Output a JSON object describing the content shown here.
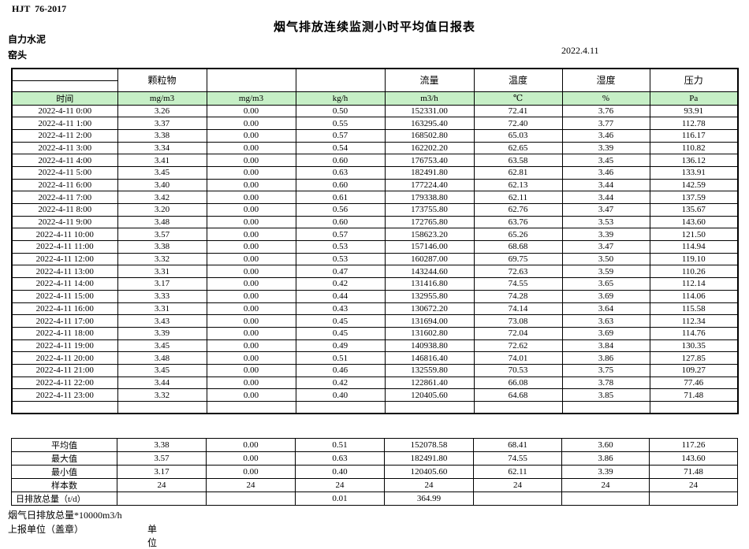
{
  "page": {
    "standard_code": "HJT  76-2017",
    "title": "烟气排放连续监测小时平均值日报表",
    "company": "自力水泥",
    "monitor_point": "窑头",
    "report_date": "2022.4.11"
  },
  "table": {
    "group_headers": [
      "",
      "颗粒物",
      "",
      "",
      "流量",
      "温度",
      "湿度",
      "压力"
    ],
    "unit_headers": [
      "时间",
      "mg/m3",
      "mg/m3",
      "kg/h",
      "m3/h",
      "℃",
      "%",
      "Pa"
    ],
    "rows": [
      [
        "2022-4-11 0:00",
        "3.26",
        "0.00",
        "0.50",
        "152331.00",
        "72.41",
        "3.76",
        "93.91"
      ],
      [
        "2022-4-11 1:00",
        "3.37",
        "0.00",
        "0.55",
        "163295.40",
        "72.40",
        "3.77",
        "112.78"
      ],
      [
        "2022-4-11 2:00",
        "3.38",
        "0.00",
        "0.57",
        "168502.80",
        "65.03",
        "3.46",
        "116.17"
      ],
      [
        "2022-4-11 3:00",
        "3.34",
        "0.00",
        "0.54",
        "162202.20",
        "62.65",
        "3.39",
        "110.82"
      ],
      [
        "2022-4-11 4:00",
        "3.41",
        "0.00",
        "0.60",
        "176753.40",
        "63.58",
        "3.45",
        "136.12"
      ],
      [
        "2022-4-11 5:00",
        "3.45",
        "0.00",
        "0.63",
        "182491.80",
        "62.81",
        "3.46",
        "133.91"
      ],
      [
        "2022-4-11 6:00",
        "3.40",
        "0.00",
        "0.60",
        "177224.40",
        "62.13",
        "3.44",
        "142.59"
      ],
      [
        "2022-4-11 7:00",
        "3.42",
        "0.00",
        "0.61",
        "179338.80",
        "62.11",
        "3.44",
        "137.59"
      ],
      [
        "2022-4-11 8:00",
        "3.20",
        "0.00",
        "0.56",
        "173755.80",
        "62.76",
        "3.47",
        "135.67"
      ],
      [
        "2022-4-11 9:00",
        "3.48",
        "0.00",
        "0.60",
        "172765.80",
        "63.76",
        "3.53",
        "143.60"
      ],
      [
        "2022-4-11 10:00",
        "3.57",
        "0.00",
        "0.57",
        "158623.20",
        "65.26",
        "3.39",
        "121.50"
      ],
      [
        "2022-4-11 11:00",
        "3.38",
        "0.00",
        "0.53",
        "157146.00",
        "68.68",
        "3.47",
        "114.94"
      ],
      [
        "2022-4-11 12:00",
        "3.32",
        "0.00",
        "0.53",
        "160287.00",
        "69.75",
        "3.50",
        "119.10"
      ],
      [
        "2022-4-11 13:00",
        "3.31",
        "0.00",
        "0.47",
        "143244.60",
        "72.63",
        "3.59",
        "110.26"
      ],
      [
        "2022-4-11 14:00",
        "3.17",
        "0.00",
        "0.42",
        "131416.80",
        "74.55",
        "3.65",
        "112.14"
      ],
      [
        "2022-4-11 15:00",
        "3.33",
        "0.00",
        "0.44",
        "132955.80",
        "74.28",
        "3.69",
        "114.06"
      ],
      [
        "2022-4-11 16:00",
        "3.31",
        "0.00",
        "0.43",
        "130672.20",
        "74.14",
        "3.64",
        "115.58"
      ],
      [
        "2022-4-11 17:00",
        "3.43",
        "0.00",
        "0.45",
        "131694.00",
        "73.08",
        "3.63",
        "112.34"
      ],
      [
        "2022-4-11 18:00",
        "3.39",
        "0.00",
        "0.45",
        "131602.80",
        "72.04",
        "3.69",
        "114.76"
      ],
      [
        "2022-4-11 19:00",
        "3.45",
        "0.00",
        "0.49",
        "140938.80",
        "72.62",
        "3.84",
        "130.35"
      ],
      [
        "2022-4-11 20:00",
        "3.48",
        "0.00",
        "0.51",
        "146816.40",
        "74.01",
        "3.86",
        "127.85"
      ],
      [
        "2022-4-11 21:00",
        "3.45",
        "0.00",
        "0.46",
        "132559.80",
        "70.53",
        "3.75",
        "109.27"
      ],
      [
        "2022-4-11 22:00",
        "3.44",
        "0.00",
        "0.42",
        "122861.40",
        "66.08",
        "3.78",
        "77.46"
      ],
      [
        "2022-4-11 23:00",
        "3.32",
        "0.00",
        "0.40",
        "120405.60",
        "64.68",
        "3.85",
        "71.48"
      ]
    ],
    "summary_rows": [
      [
        "平均值",
        "3.38",
        "0.00",
        "0.51",
        "152078.58",
        "68.41",
        "3.60",
        "117.26"
      ],
      [
        "最大值",
        "3.57",
        "0.00",
        "0.63",
        "182491.80",
        "74.55",
        "3.86",
        "143.60"
      ],
      [
        "最小值",
        "3.17",
        "0.00",
        "0.40",
        "120405.60",
        "62.11",
        "3.39",
        "71.48"
      ],
      [
        "样本数",
        "24",
        "24",
        "24",
        "24",
        "24",
        "24",
        "24"
      ],
      [
        "日排放总量（t/d）",
        "",
        "",
        "0.01",
        "364.99",
        "",
        "",
        ""
      ]
    ]
  },
  "footer": {
    "flow_note": "烟气日排放总量*10000m3/h",
    "report_unit_label": "上报单位（盖章）",
    "unit_label": "单位"
  },
  "colors": {
    "header_row_green": "#C6EFC6",
    "border": "#000000",
    "text": "#000000",
    "background": "#FFFFFF"
  }
}
